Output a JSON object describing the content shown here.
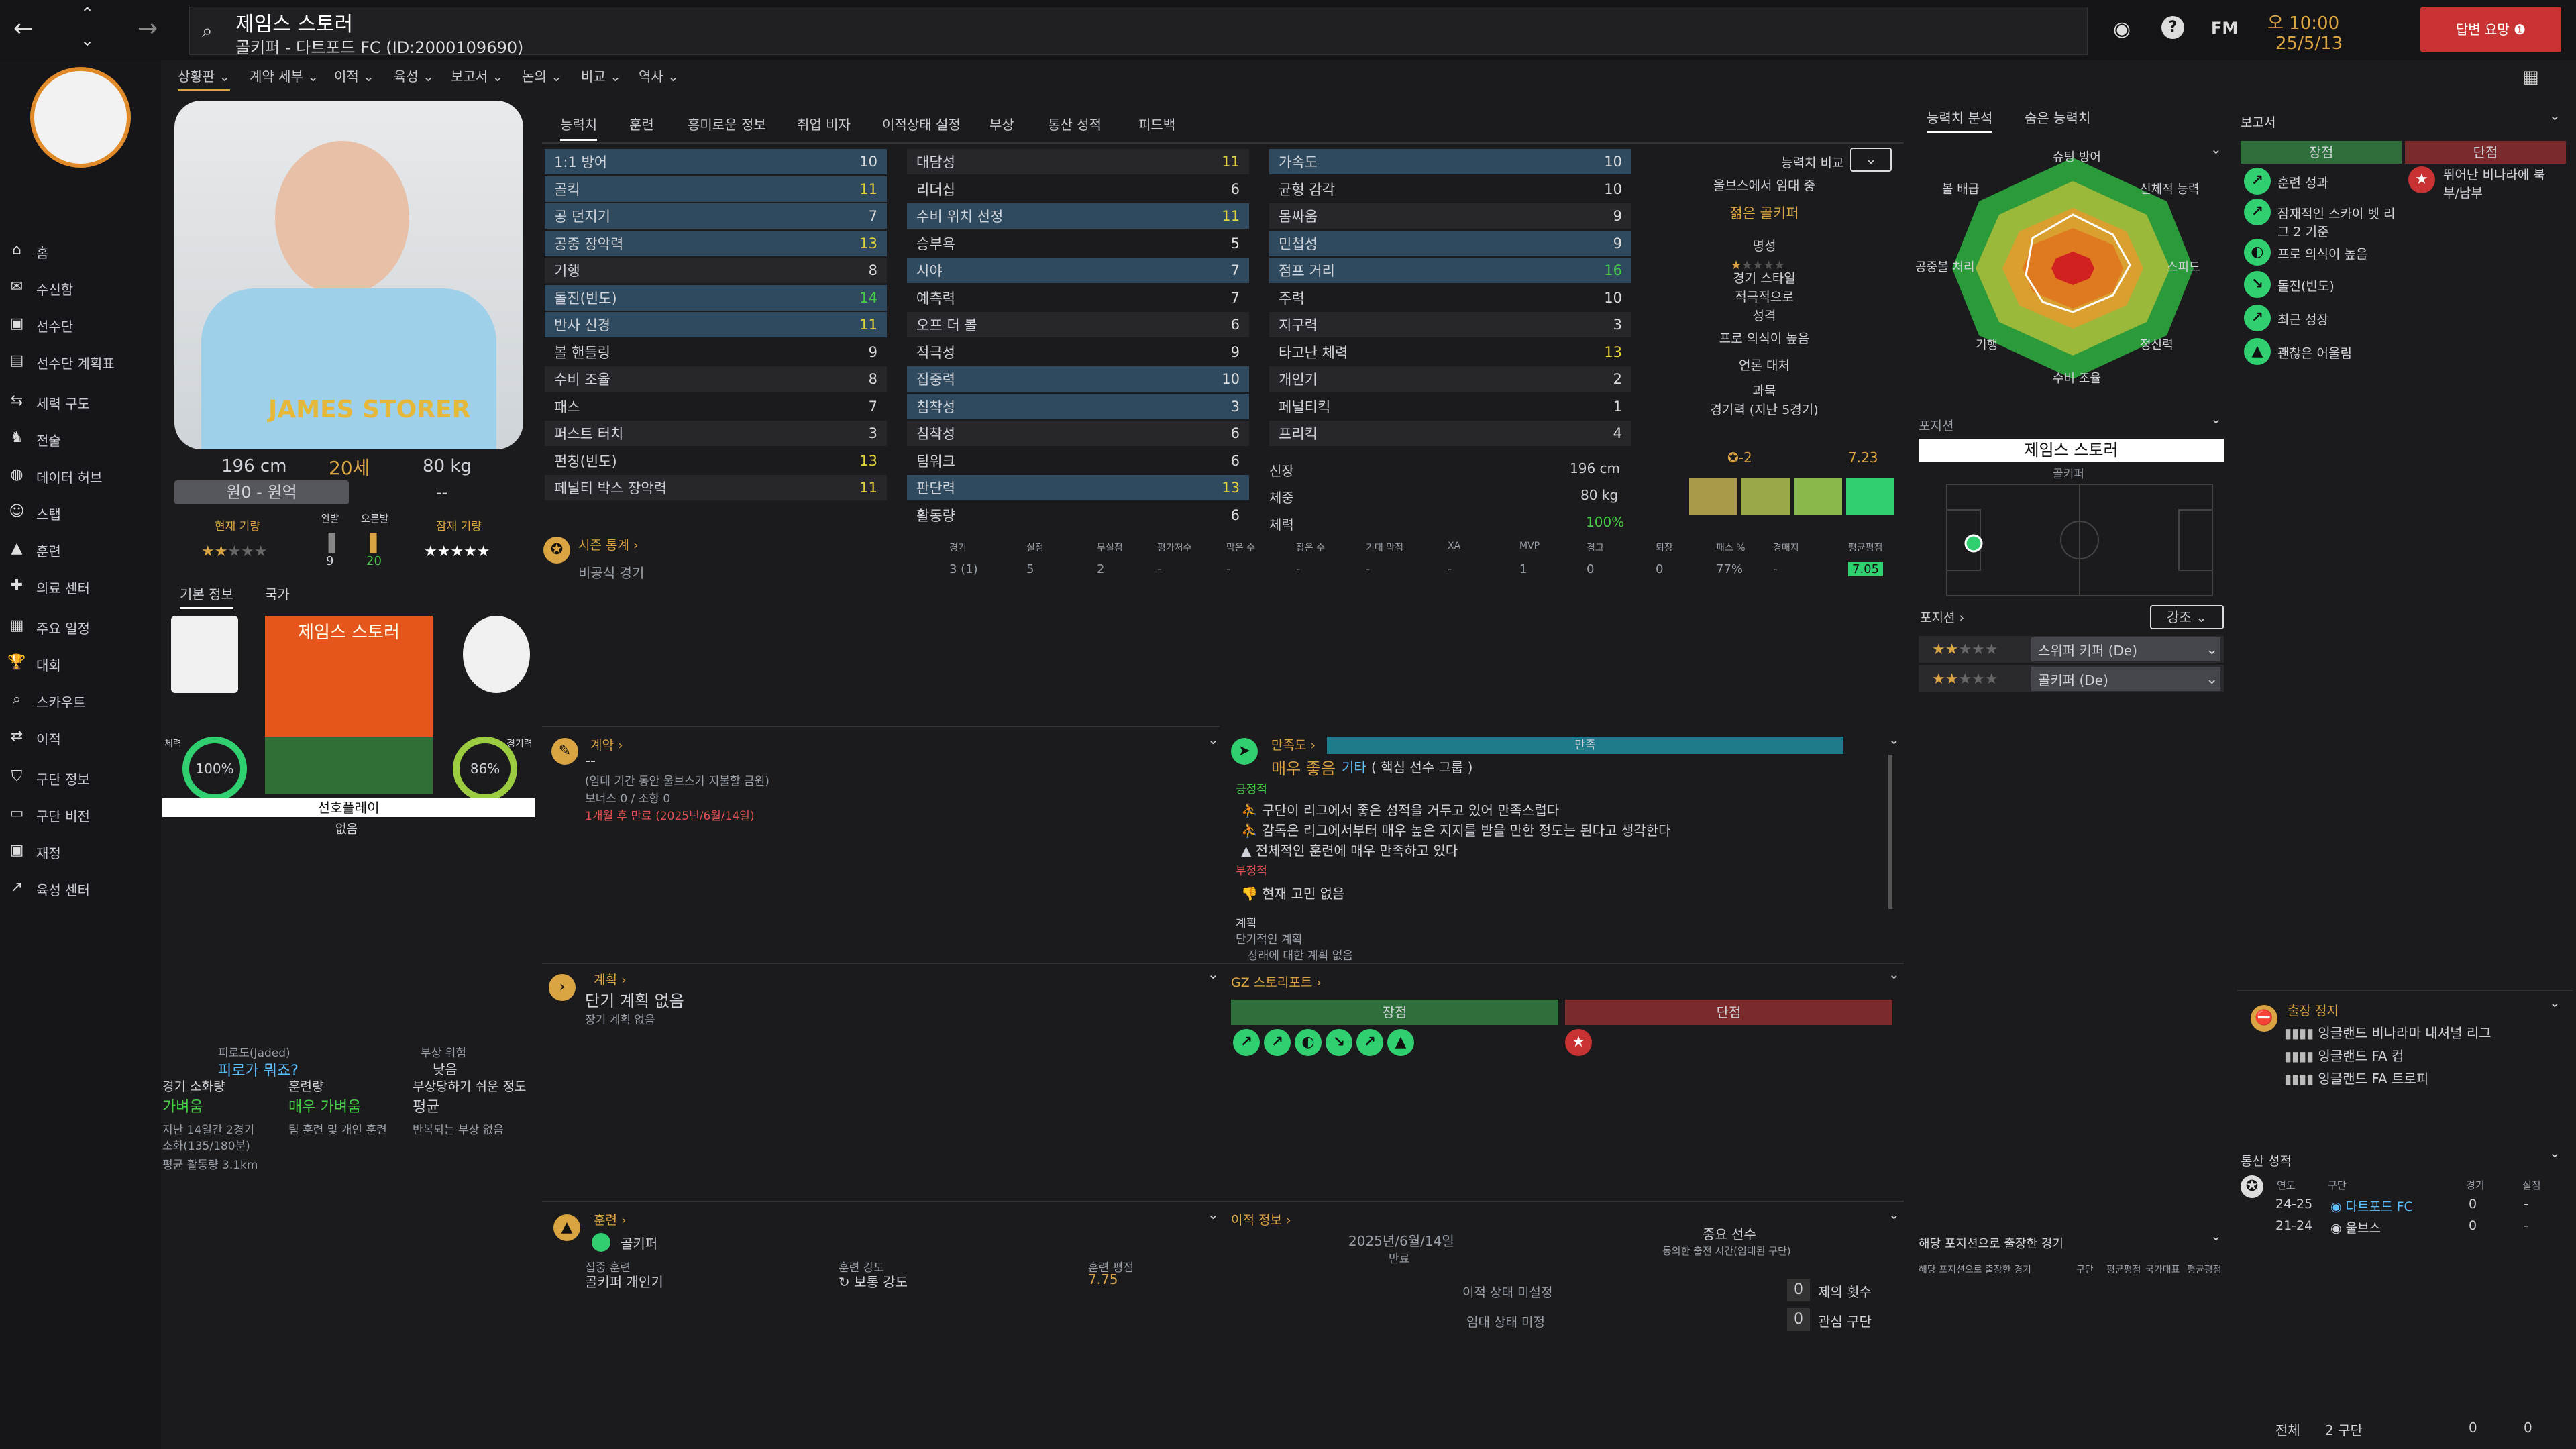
{
  "topbar": {
    "player_name": "제임스 스토러",
    "subtitle": "골키퍼 - 다트포드 FC (ID:2000109690)",
    "time": "오 10:00",
    "date": "25/5/13",
    "continue": "답변 요망",
    "fm": "FM"
  },
  "nav": [
    "홈",
    "수신함",
    "선수단",
    "선수단 계획표",
    "세력 구도",
    "전술",
    "데이터 허브",
    "스탭",
    "훈련",
    "의료 센터",
    "주요 일정",
    "대회",
    "스카우트",
    "이적",
    "구단 정보",
    "구단 비전",
    "재정",
    "육성 센터"
  ],
  "menus": [
    "상황판",
    "계약 세부",
    "이적",
    "육성",
    "보고서",
    "논의",
    "비교",
    "역사"
  ],
  "profile": {
    "height": "196 cm",
    "age": "20세",
    "weight": "80 kg",
    "wage": "원0 - 원억",
    "wage2": "--",
    "current_ability": "현재 기량",
    "potential": "잠재 기량",
    "left_foot": "왼발",
    "right_foot": "오른발",
    "left_val": "9",
    "right_val": "20",
    "kit_name": "JAMES STORER"
  },
  "info_tabs": [
    "기본 정보",
    "국가"
  ],
  "card": {
    "name": "제임스 스토러",
    "condition_pct": "100%",
    "match_pct": "86%",
    "cond_lbl": "체력",
    "match_lbl": "경기력",
    "preferred": "선호플레이",
    "none": "없음"
  },
  "fatigue": {
    "t1": "피로도(Jaded)",
    "t2": "피로가 뭐죠?",
    "t3": "부상 위험",
    "t4": "낮음",
    "c1": "경기 소화량",
    "c1v": "가벼움",
    "c2": "훈련량",
    "c2v": "매우 가벼움",
    "c3": "부상당하기 쉬운 정도",
    "c3v": "평균",
    "s1": "지난 14일간 2경기",
    "s2": "소화(135/180분)",
    "s3": "평균 활동량 3.1km",
    "s4": "팀 훈련 및 개인 훈련",
    "s5": "반복되는 부상 없음"
  },
  "attr_tabs": [
    "능력치",
    "훈련",
    "흥미로운 정보",
    "취업 비자",
    "이적상태 설정",
    "부상",
    "통산 성적",
    "피드백"
  ],
  "attrs1": [
    [
      "1:1 방어",
      "10"
    ],
    [
      "골킥",
      "11"
    ],
    [
      "공 던지기",
      "7"
    ],
    [
      "공중 장악력",
      "13"
    ],
    [
      "기행",
      "8"
    ],
    [
      "돌진(빈도)",
      "14"
    ],
    [
      "반사 신경",
      "11"
    ],
    [
      "볼 핸들링",
      "9"
    ],
    [
      "수비 조율",
      "8"
    ],
    [
      "패스",
      "7"
    ],
    [
      "퍼스트 터치",
      "3"
    ],
    [
      "펀칭(빈도)",
      "13"
    ],
    [
      "페널티 박스 장악력",
      "11"
    ]
  ],
  "attrs2": [
    [
      "대담성",
      "11"
    ],
    [
      "리더십",
      "6"
    ],
    [
      "수비 위치 선정",
      "11"
    ],
    [
      "승부욕",
      "5"
    ],
    [
      "시야",
      "7"
    ],
    [
      "예측력",
      "7"
    ],
    [
      "오프 더 볼",
      "6"
    ],
    [
      "적극성",
      "9"
    ],
    [
      "집중력",
      "10"
    ],
    [
      "침착성",
      "3"
    ],
    [
      "침착성",
      "6"
    ],
    [
      "팀워크",
      "6"
    ],
    [
      "판단력",
      "13"
    ],
    [
      "활동량",
      "6"
    ]
  ],
  "attrs3": [
    [
      "가속도",
      "10"
    ],
    [
      "균형 감각",
      "10"
    ],
    [
      "몸싸움",
      "9"
    ],
    [
      "민첩성",
      "9"
    ],
    [
      "점프 거리",
      "16"
    ],
    [
      "주력",
      "10"
    ],
    [
      "지구력",
      "3"
    ],
    [
      "타고난 체력",
      "13"
    ],
    [
      "개인기",
      "2"
    ],
    [
      "페널티킥",
      "1"
    ],
    [
      "프리킥",
      "4"
    ]
  ],
  "phys": {
    "h": "신장",
    "hv": "196 cm",
    "w": "체중",
    "wv": "80 kg",
    "c": "체력",
    "cv": "100%"
  },
  "compare": {
    "btn": "능력치 비교",
    "l1": "울브스에서 임대 중",
    "l2": "젊은 골키퍼",
    "l3": "명성",
    "l4": "경기 스타일",
    "l5": "적극적으로",
    "l6": "성격",
    "l7": "프로 의식이 높음",
    "l8": "언론 대처",
    "l9": "과묵",
    "l10": "경기력 (지난 5경기)",
    "f1": "-2",
    "f2": "7.23"
  },
  "season": {
    "title": "시즌 통계",
    "headers": [
      "경기",
      "실점",
      "무실점",
      "평가저수",
      "막은 수",
      "잡은 수",
      "기대 막점",
      "XA",
      "MVP",
      "경고",
      "퇴장",
      "패스 %",
      "경매지",
      "평균평점"
    ],
    "row": "비공식 경기",
    "vals": [
      "3 (1)",
      "5",
      "2",
      "-",
      "-",
      "-",
      "-",
      "-",
      "1",
      "0",
      "0",
      "77%",
      "-",
      "7.05"
    ]
  },
  "contract": {
    "title": "계약",
    "v": "--",
    "l1": "(임대 기간 동안 울브스가 지불할 금원)",
    "l2": "보너스 0 / 조항 0",
    "l3": "1개월 후 만료 (2025년/6월/14일)"
  },
  "happy": {
    "title": "만족도",
    "bar": "만족",
    "v": "매우 좋음",
    "v2": "기타",
    "v3": "( 핵심 선수 그룹 )",
    "pos": "긍정적",
    "p1": "구단이 리그에서 좋은 성적을 거두고 있어 만족스럽다",
    "p2": "감독은 리그에서부터 매우 높은 지지를 받을 만한 정도는 된다고 생각한다",
    "p3": "전체적인 훈련에 매우 만족하고 있다",
    "neg": "부정적",
    "n1": "현재 고민 없음",
    "plan": "계획",
    "plan2": "단기적인 계획",
    "plan3": "장래에 대한 계획 없음"
  },
  "plan": {
    "title": "계획",
    "v": "단기 계획 없음",
    "v2": "장기 계획 없음"
  },
  "scout": {
    "title": "GZ 스토리포트",
    "pros": "장점",
    "cons": "단점"
  },
  "training": {
    "title": "훈련",
    "pos": "골키퍼",
    "lbl1": "집중 훈련",
    "v1": "골키퍼 개인기",
    "lbl2": "훈련 강도",
    "v2": "보통 강도",
    "lbl3": "훈련 평점",
    "v3": "7.75"
  },
  "transfer": {
    "title": "이적 정보",
    "date": "2025년/6월/14일",
    "exp": "만료",
    "key": "중요 선수",
    "key2": "동의한 출전 시간(임대된 구단)",
    "s1": "이적 상태 미설정",
    "s2": "임대 상태 미정",
    "n1": "0",
    "t1": "제의 횟수",
    "n2": "0",
    "t2": "관심 구단"
  },
  "analysis": {
    "tab1": "능력치 분석",
    "tab2": "숨은 능력치",
    "axes": [
      "슈팅 방어",
      "신체적 능력",
      "스피드",
      "정신력",
      "수비 조율",
      "기행",
      "공중볼 처리",
      "볼 배급"
    ]
  },
  "position": {
    "title": "포지션",
    "name": "제임스 스토러",
    "role": "골키퍼",
    "roles_title": "포지션",
    "btn": "강조",
    "r1": "스위퍼 키퍼 (De)",
    "r2": "골키퍼 (De)"
  },
  "report": {
    "title": "보고서",
    "pros": "장점",
    "cons": "단점",
    "p": [
      "훈련 성과",
      "잠재적인 스카이 벳 리그 2 기준",
      "프로 의식이 높음",
      "돌진(빈도)",
      "최근 성장",
      "괜찮은 어울림"
    ],
    "c": [
      "뛰어난 비나라에 북부/남부"
    ]
  },
  "ban": {
    "title": "출장 정지",
    "items": [
      "잉글랜드 비나라마 내셔널 리그",
      "잉글랜드 FA 컵",
      "잉글랜드 FA 트로피"
    ]
  },
  "career": {
    "title": "통산 성적",
    "h": [
      "연도",
      "구단",
      "경기",
      "실점"
    ],
    "rows": [
      [
        "24-25",
        "다트포드 FC",
        "0",
        "-"
      ],
      [
        "21-24",
        "울브스",
        "0",
        "-"
      ]
    ],
    "total": "전체",
    "total2": "2 구단",
    "t3": "0",
    "t4": "0"
  },
  "posmatch": {
    "title": "해당 포지션으로 출장한 경기",
    "h": [
      "해당 포지션으로 출장한 경기",
      "구단",
      "평균평점",
      "국가대표",
      "평균평점"
    ]
  },
  "colors": {
    "accent": "#d9a441",
    "green": "#2e8b57",
    "red": "#c83232",
    "teal": "#1f7a8c"
  }
}
